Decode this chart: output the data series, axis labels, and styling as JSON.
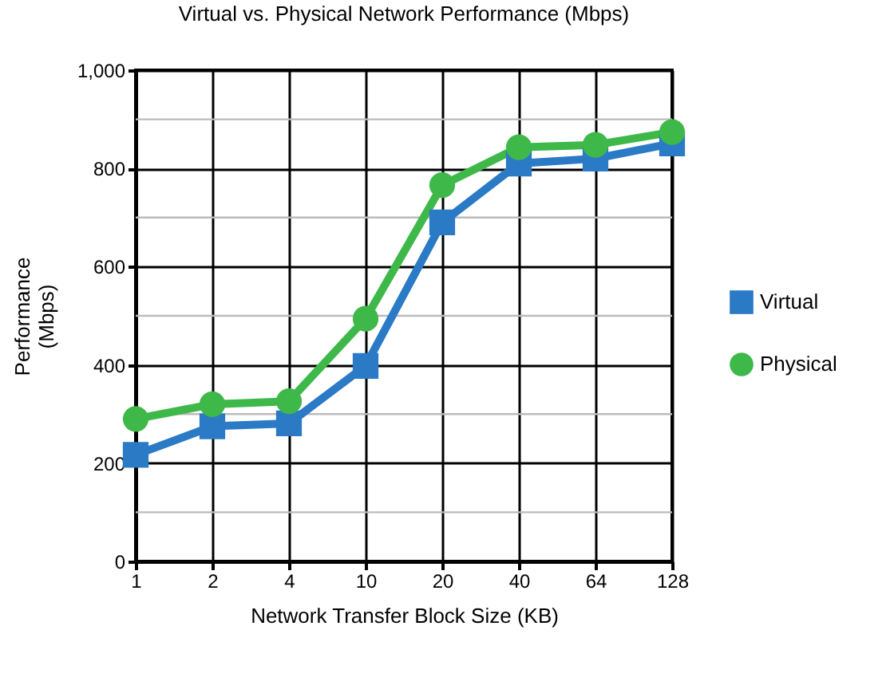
{
  "chart_data": {
    "type": "line",
    "title": "Virtual vs. Physical Network Performance (Mbps)",
    "xlabel": "Network Transfer Block Size (KB)",
    "ylabel": "Performance\n(Mbps)",
    "categories": [
      "1",
      "2",
      "4",
      "10",
      "20",
      "40",
      "64",
      "128"
    ],
    "series": [
      {
        "name": "Virtual",
        "color": "#2a7ac6",
        "marker": "square",
        "values": [
          217,
          275,
          281,
          398,
          690,
          810,
          820,
          851
        ]
      },
      {
        "name": "Physical",
        "color": "#3fb84a",
        "marker": "circle",
        "values": [
          290,
          320,
          326,
          494,
          766,
          843,
          848,
          874
        ]
      }
    ],
    "ylim": [
      0,
      1000
    ],
    "yticks": [
      0,
      {
        "value": 100,
        "label": null
      },
      200,
      {
        "value": 300,
        "label": null
      },
      400,
      {
        "value": 500,
        "label": null
      },
      600,
      {
        "value": 700,
        "label": null
      },
      800,
      {
        "value": 900,
        "label": null
      },
      {
        "value": 1000,
        "label": "1,000"
      }
    ],
    "grid": true,
    "legend": "right",
    "line_style": "solid"
  }
}
